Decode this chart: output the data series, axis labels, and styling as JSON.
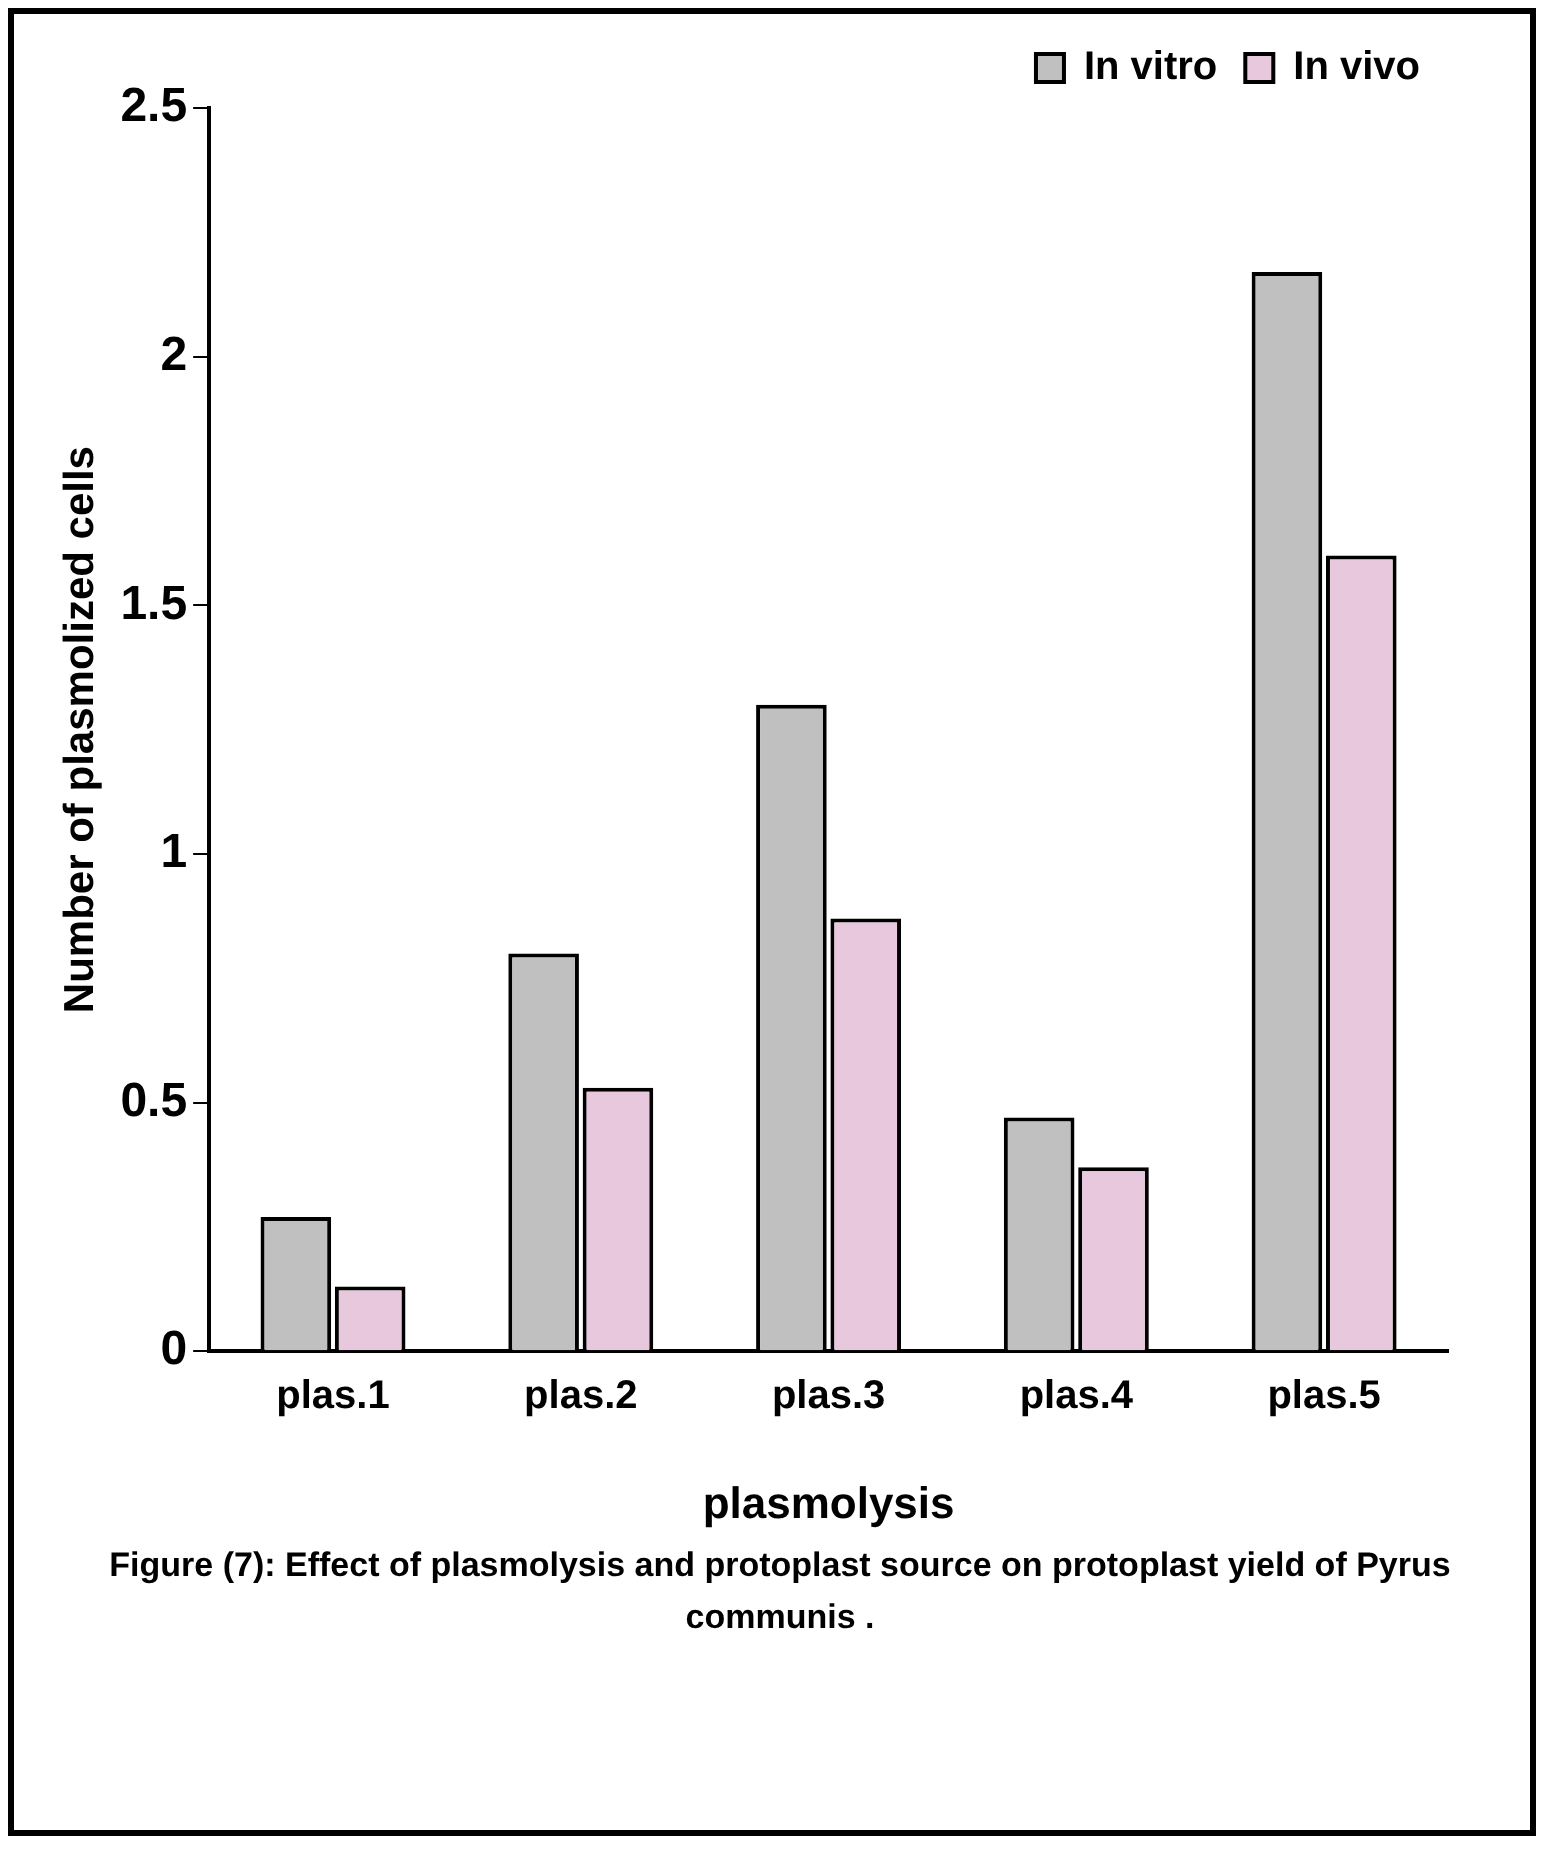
{
  "chart_data": {
    "type": "bar",
    "xlabel": "plasmolysis",
    "ylabel": "Number of plasmolized cells",
    "categories": [
      "plas.1",
      "plas.2",
      "plas.3",
      "plas.4",
      "plas.5"
    ],
    "series": [
      {
        "name": "In vitro",
        "color": "#c0c0c0",
        "values": [
          0.27,
          0.8,
          1.3,
          0.47,
          2.17
        ]
      },
      {
        "name": "In vivo",
        "color": "#e8c8dc",
        "values": [
          0.13,
          0.53,
          0.87,
          0.37,
          1.6
        ]
      }
    ],
    "ylim": [
      0,
      2.5
    ],
    "yticks": [
      0,
      0.5,
      1,
      1.5,
      2,
      2.5
    ],
    "grid": false,
    "legend": "top right",
    "annotations": [
      "Figure (7): Effect of plasmolysis and protoplast source on protoplast yield of Pyrus communis ."
    ]
  }
}
